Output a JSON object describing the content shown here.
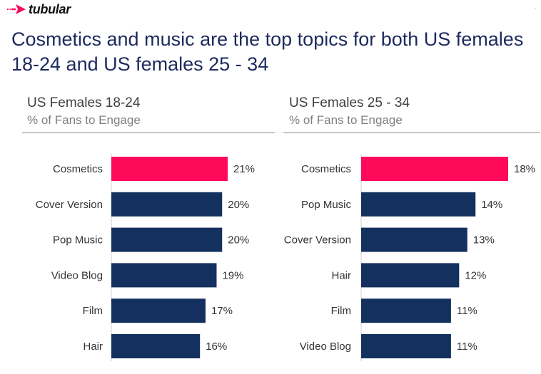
{
  "brand": {
    "name": "tubular",
    "logo_icon": "arrow-logo-icon",
    "accent_color": "#ff0a5a"
  },
  "headline": "Cosmetics and music are the top topics for both US females 18-24 and US females 25 - 34",
  "colors": {
    "highlight_bar": "#ff0a5a",
    "default_bar": "#14305f",
    "title_text": "#1d2a5e"
  },
  "chart_data": [
    {
      "type": "bar",
      "orientation": "horizontal",
      "title": "US Females 18-24",
      "subtitle": "% of Fans to Engage",
      "categories": [
        "Cosmetics",
        "Cover Version",
        "Pop Music",
        "Video Blog",
        "Film",
        "Hair"
      ],
      "values": [
        21,
        20,
        20,
        19,
        17,
        16
      ],
      "data_labels": [
        "21%",
        "20%",
        "20%",
        "19%",
        "17%",
        "16%"
      ],
      "unit": "%",
      "highlight": [
        "Cosmetics"
      ],
      "xlim": [
        0,
        21
      ],
      "grid": false,
      "legend": "none"
    },
    {
      "type": "bar",
      "orientation": "horizontal",
      "title": "US Females 25 - 34",
      "subtitle": "% of Fans to Engage",
      "categories": [
        "Cosmetics",
        "Pop Music",
        "Cover Version",
        "Hair",
        "Film",
        "Video Blog"
      ],
      "values": [
        18,
        14,
        13,
        12,
        11,
        11
      ],
      "data_labels": [
        "18%",
        "14%",
        "13%",
        "12%",
        "11%",
        "11%"
      ],
      "unit": "%",
      "highlight": [
        "Cosmetics"
      ],
      "xlim": [
        0,
        18
      ],
      "grid": false,
      "legend": "none"
    }
  ]
}
